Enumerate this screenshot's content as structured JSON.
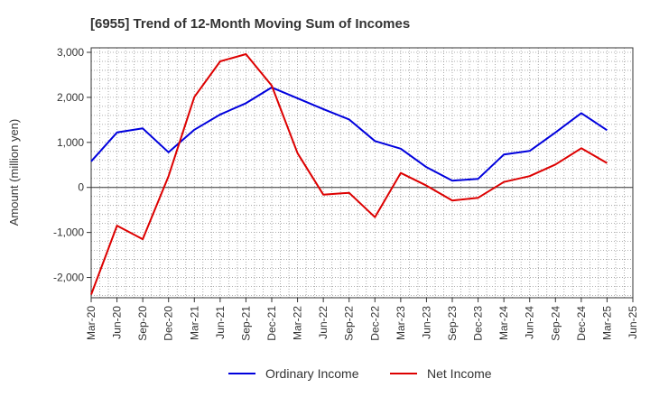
{
  "chart_data": {
    "type": "line",
    "title": "[6955]  Trend of 12-Month Moving Sum of Incomes",
    "xlabel": "",
    "ylabel": "Amount (million yen)",
    "ylim": [
      -2450,
      3100
    ],
    "yticks": [
      3000,
      2000,
      1000,
      0,
      -1000,
      -2000
    ],
    "ytick_labels": [
      "3,000",
      "2,000",
      "1,000",
      "0",
      "-1,000",
      "-2,000"
    ],
    "x_tick_labels": [
      "Mar-20",
      "Jun-20",
      "Sep-20",
      "Dec-20",
      "Mar-21",
      "Jun-21",
      "Sep-21",
      "Dec-21",
      "Mar-22",
      "Jun-22",
      "Sep-22",
      "Dec-22",
      "Mar-23",
      "Jun-23",
      "Sep-23",
      "Dec-23",
      "Mar-24",
      "Jun-24",
      "Sep-24",
      "Dec-24",
      "Mar-25",
      "Jun-25"
    ],
    "grid": true,
    "legend_position": "bottom-center",
    "series": [
      {
        "name": "Ordinary Income",
        "color": "#0000dd",
        "values": [
          580,
          1220,
          1310,
          780,
          1280,
          1620,
          1870,
          2220,
          1980,
          1740,
          1510,
          1030,
          860,
          450,
          150,
          190,
          730,
          810,
          1220,
          1650,
          1270
        ]
      },
      {
        "name": "Net Income",
        "color": "#dd0000",
        "values": [
          -2380,
          -850,
          -1150,
          250,
          2010,
          2800,
          2960,
          2260,
          760,
          -160,
          -120,
          -660,
          320,
          40,
          -290,
          -230,
          120,
          250,
          510,
          870,
          540
        ]
      }
    ]
  }
}
